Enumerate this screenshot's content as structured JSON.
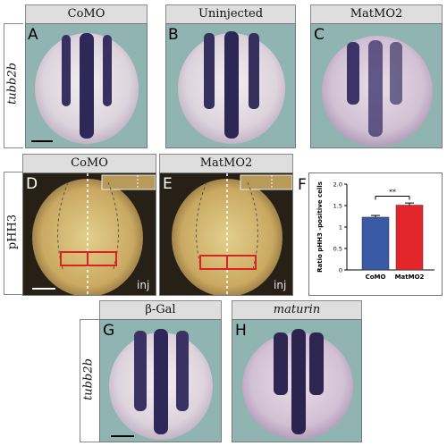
{
  "top_row": {
    "side_label": "tubb2b",
    "panels": [
      {
        "letter": "A",
        "header": "CoMO"
      },
      {
        "letter": "B",
        "header": "Uninjected"
      },
      {
        "letter": "C",
        "header": "MatMO2"
      }
    ]
  },
  "middle_row": {
    "side_label": "pHH3",
    "panels": [
      {
        "letter": "D",
        "header": "CoMO",
        "corner": "inj"
      },
      {
        "letter": "E",
        "header": "MatMO2",
        "corner": "inj"
      }
    ]
  },
  "bottom_row": {
    "side_label": "tubb2b",
    "panels": [
      {
        "letter": "G",
        "header": "β-Gal"
      },
      {
        "letter": "H",
        "header": "maturin"
      }
    ]
  },
  "panel_f_letter": "F",
  "chart_data": {
    "type": "bar",
    "categories": [
      "CoMO",
      "MatMO2"
    ],
    "values": [
      1.23,
      1.51
    ],
    "errors": [
      0.04,
      0.05
    ],
    "ylabel": "Ratio pHH3 -positive cells",
    "ylim": [
      0,
      2.0
    ],
    "yticks": [
      "0",
      "0.5",
      "1",
      "1.5",
      "2.0"
    ],
    "significance": "**",
    "colors": [
      "#3a5aa8",
      "#e3262b"
    ]
  }
}
